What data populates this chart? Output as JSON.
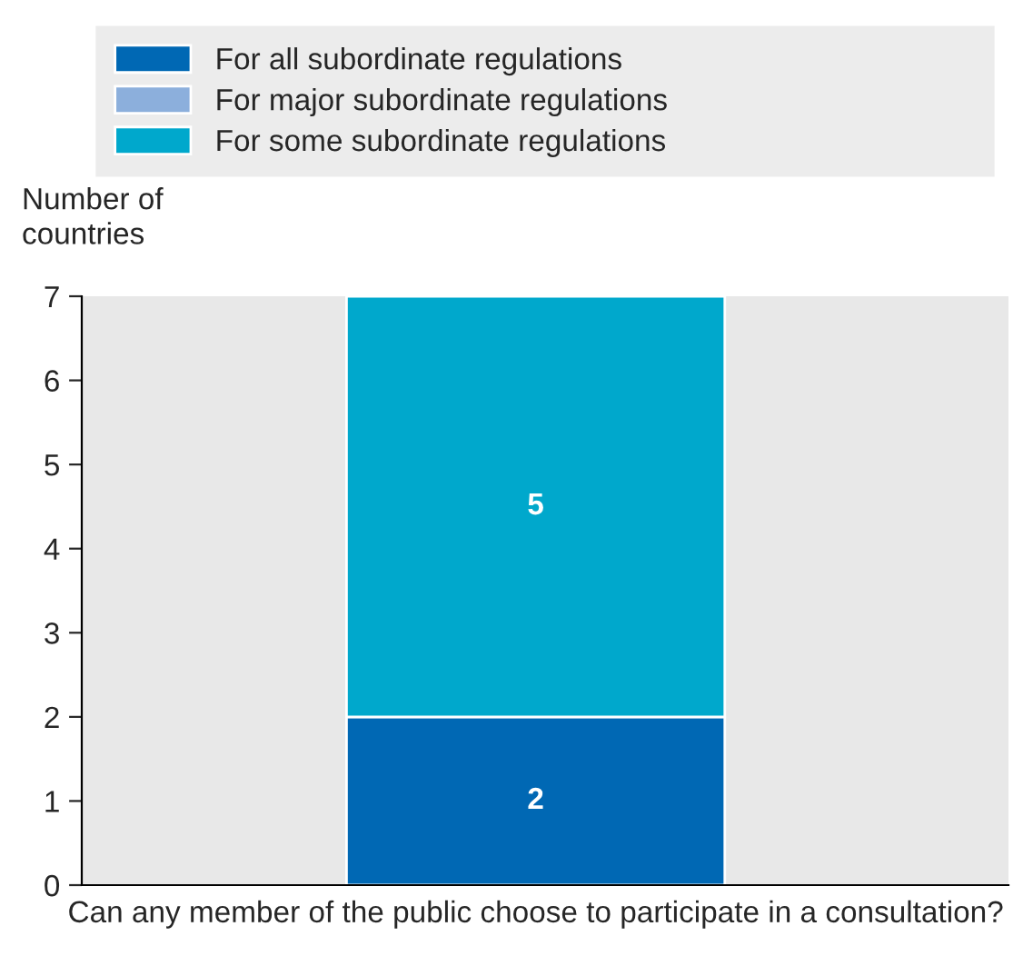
{
  "chart_data": {
    "type": "bar",
    "stacked": true,
    "ylabel": "Number of\ncountries",
    "categories": [
      "Can any member of the public choose to participate in a consultation?"
    ],
    "series": [
      {
        "name": "For all subordinate regulations",
        "color": "#0068b4",
        "values": [
          2
        ],
        "value_labels": [
          "2"
        ]
      },
      {
        "name": "For major subordinate regulations",
        "color": "#8cafdc",
        "values": [
          0
        ],
        "value_labels": [
          null
        ]
      },
      {
        "name": "For some subordinate regulations",
        "color": "#00a8cc",
        "values": [
          5
        ],
        "value_labels": [
          "5"
        ]
      }
    ],
    "ylim": [
      0,
      7
    ],
    "yticks": [
      0,
      1,
      2,
      3,
      4,
      5,
      6,
      7
    ],
    "grid": false,
    "legend": "top"
  }
}
